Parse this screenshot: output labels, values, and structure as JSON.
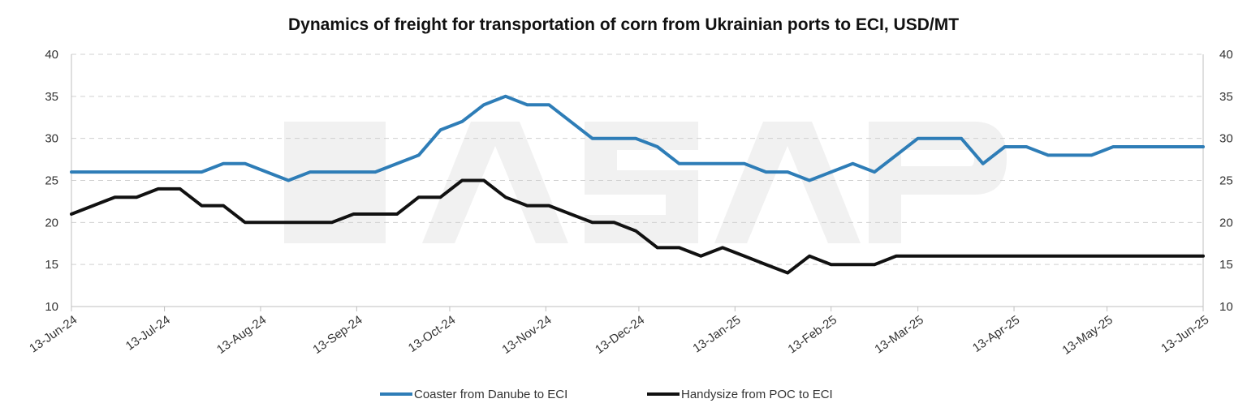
{
  "chart_data": {
    "type": "line",
    "title": "Dynamics of freight for transportation of corn from Ukrainian ports to ECI, USD/MT",
    "x_tick_labels": [
      "13-Jun-24",
      "13-Jul-24",
      "13-Aug-24",
      "13-Sep-24",
      "13-Oct-24",
      "13-Nov-24",
      "13-Dec-24",
      "13-Jan-25",
      "13-Feb-25",
      "13-Mar-25",
      "13-Apr-25",
      "13-May-25",
      "13-Jun-25"
    ],
    "y_tick_labels": [
      "10",
      "15",
      "20",
      "25",
      "30",
      "35",
      "40"
    ],
    "ylim": [
      10,
      40
    ],
    "y_secondary_ylim": [
      10,
      40
    ],
    "grid": true,
    "legend_position": "bottom",
    "x_range": [
      "2024-06-13",
      "2025-06-13"
    ],
    "series": [
      {
        "name": "Coaster from Danube to ECI",
        "color": "#2E7DB7",
        "points": [
          [
            "2024-06-13",
            26
          ],
          [
            "2024-06-20",
            26
          ],
          [
            "2024-06-27",
            26
          ],
          [
            "2024-07-04",
            26
          ],
          [
            "2024-07-11",
            26
          ],
          [
            "2024-07-18",
            26
          ],
          [
            "2024-07-25",
            26
          ],
          [
            "2024-08-01",
            27
          ],
          [
            "2024-08-08",
            27
          ],
          [
            "2024-08-15",
            26
          ],
          [
            "2024-08-22",
            25
          ],
          [
            "2024-08-29",
            26
          ],
          [
            "2024-09-05",
            26
          ],
          [
            "2024-09-12",
            26
          ],
          [
            "2024-09-19",
            26
          ],
          [
            "2024-09-26",
            27
          ],
          [
            "2024-10-03",
            28
          ],
          [
            "2024-10-10",
            31
          ],
          [
            "2024-10-17",
            32
          ],
          [
            "2024-10-24",
            34
          ],
          [
            "2024-10-31",
            35
          ],
          [
            "2024-11-07",
            34
          ],
          [
            "2024-11-14",
            34
          ],
          [
            "2024-11-21",
            32
          ],
          [
            "2024-11-28",
            30
          ],
          [
            "2024-12-05",
            30
          ],
          [
            "2024-12-12",
            30
          ],
          [
            "2024-12-19",
            29
          ],
          [
            "2024-12-26",
            27
          ],
          [
            "2025-01-02",
            27
          ],
          [
            "2025-01-09",
            27
          ],
          [
            "2025-01-16",
            27
          ],
          [
            "2025-01-23",
            26
          ],
          [
            "2025-01-30",
            26
          ],
          [
            "2025-02-06",
            25
          ],
          [
            "2025-02-13",
            26
          ],
          [
            "2025-02-20",
            27
          ],
          [
            "2025-02-27",
            26
          ],
          [
            "2025-03-06",
            28
          ],
          [
            "2025-03-13",
            30
          ],
          [
            "2025-03-20",
            30
          ],
          [
            "2025-03-27",
            30
          ],
          [
            "2025-04-03",
            27
          ],
          [
            "2025-04-10",
            29
          ],
          [
            "2025-04-17",
            29
          ],
          [
            "2025-04-24",
            28
          ],
          [
            "2025-05-01",
            28
          ],
          [
            "2025-05-08",
            28
          ],
          [
            "2025-05-15",
            29
          ],
          [
            "2025-05-22",
            29
          ],
          [
            "2025-05-29",
            29
          ],
          [
            "2025-06-05",
            29
          ],
          [
            "2025-06-13",
            29
          ]
        ]
      },
      {
        "name": "Handysize from POC to ECI",
        "color": "#111111",
        "points": [
          [
            "2024-06-13",
            21
          ],
          [
            "2024-06-20",
            22
          ],
          [
            "2024-06-27",
            23
          ],
          [
            "2024-07-04",
            23
          ],
          [
            "2024-07-11",
            24
          ],
          [
            "2024-07-18",
            24
          ],
          [
            "2024-07-25",
            22
          ],
          [
            "2024-08-01",
            22
          ],
          [
            "2024-08-08",
            20
          ],
          [
            "2024-08-15",
            20
          ],
          [
            "2024-08-22",
            20
          ],
          [
            "2024-08-29",
            20
          ],
          [
            "2024-09-05",
            20
          ],
          [
            "2024-09-12",
            21
          ],
          [
            "2024-09-19",
            21
          ],
          [
            "2024-09-26",
            21
          ],
          [
            "2024-10-03",
            23
          ],
          [
            "2024-10-10",
            23
          ],
          [
            "2024-10-17",
            25
          ],
          [
            "2024-10-24",
            25
          ],
          [
            "2024-10-31",
            23
          ],
          [
            "2024-11-07",
            22
          ],
          [
            "2024-11-14",
            22
          ],
          [
            "2024-11-21",
            21
          ],
          [
            "2024-11-28",
            20
          ],
          [
            "2024-12-05",
            20
          ],
          [
            "2024-12-12",
            19
          ],
          [
            "2024-12-19",
            17
          ],
          [
            "2024-12-26",
            17
          ],
          [
            "2025-01-02",
            16
          ],
          [
            "2025-01-09",
            17
          ],
          [
            "2025-01-16",
            16
          ],
          [
            "2025-01-23",
            15
          ],
          [
            "2025-01-30",
            14
          ],
          [
            "2025-02-06",
            16
          ],
          [
            "2025-02-13",
            15
          ],
          [
            "2025-02-20",
            15
          ],
          [
            "2025-02-27",
            15
          ],
          [
            "2025-03-06",
            16
          ],
          [
            "2025-03-13",
            16
          ],
          [
            "2025-03-20",
            16
          ],
          [
            "2025-03-27",
            16
          ],
          [
            "2025-04-03",
            16
          ],
          [
            "2025-04-10",
            16
          ],
          [
            "2025-04-17",
            16
          ],
          [
            "2025-04-24",
            16
          ],
          [
            "2025-05-01",
            16
          ],
          [
            "2025-05-08",
            16
          ],
          [
            "2025-05-15",
            16
          ],
          [
            "2025-05-22",
            16
          ],
          [
            "2025-05-29",
            16
          ],
          [
            "2025-06-05",
            16
          ],
          [
            "2025-06-13",
            16
          ]
        ]
      }
    ]
  },
  "watermark": {
    "text": "ASAP",
    "color": "#f1f1f1"
  }
}
